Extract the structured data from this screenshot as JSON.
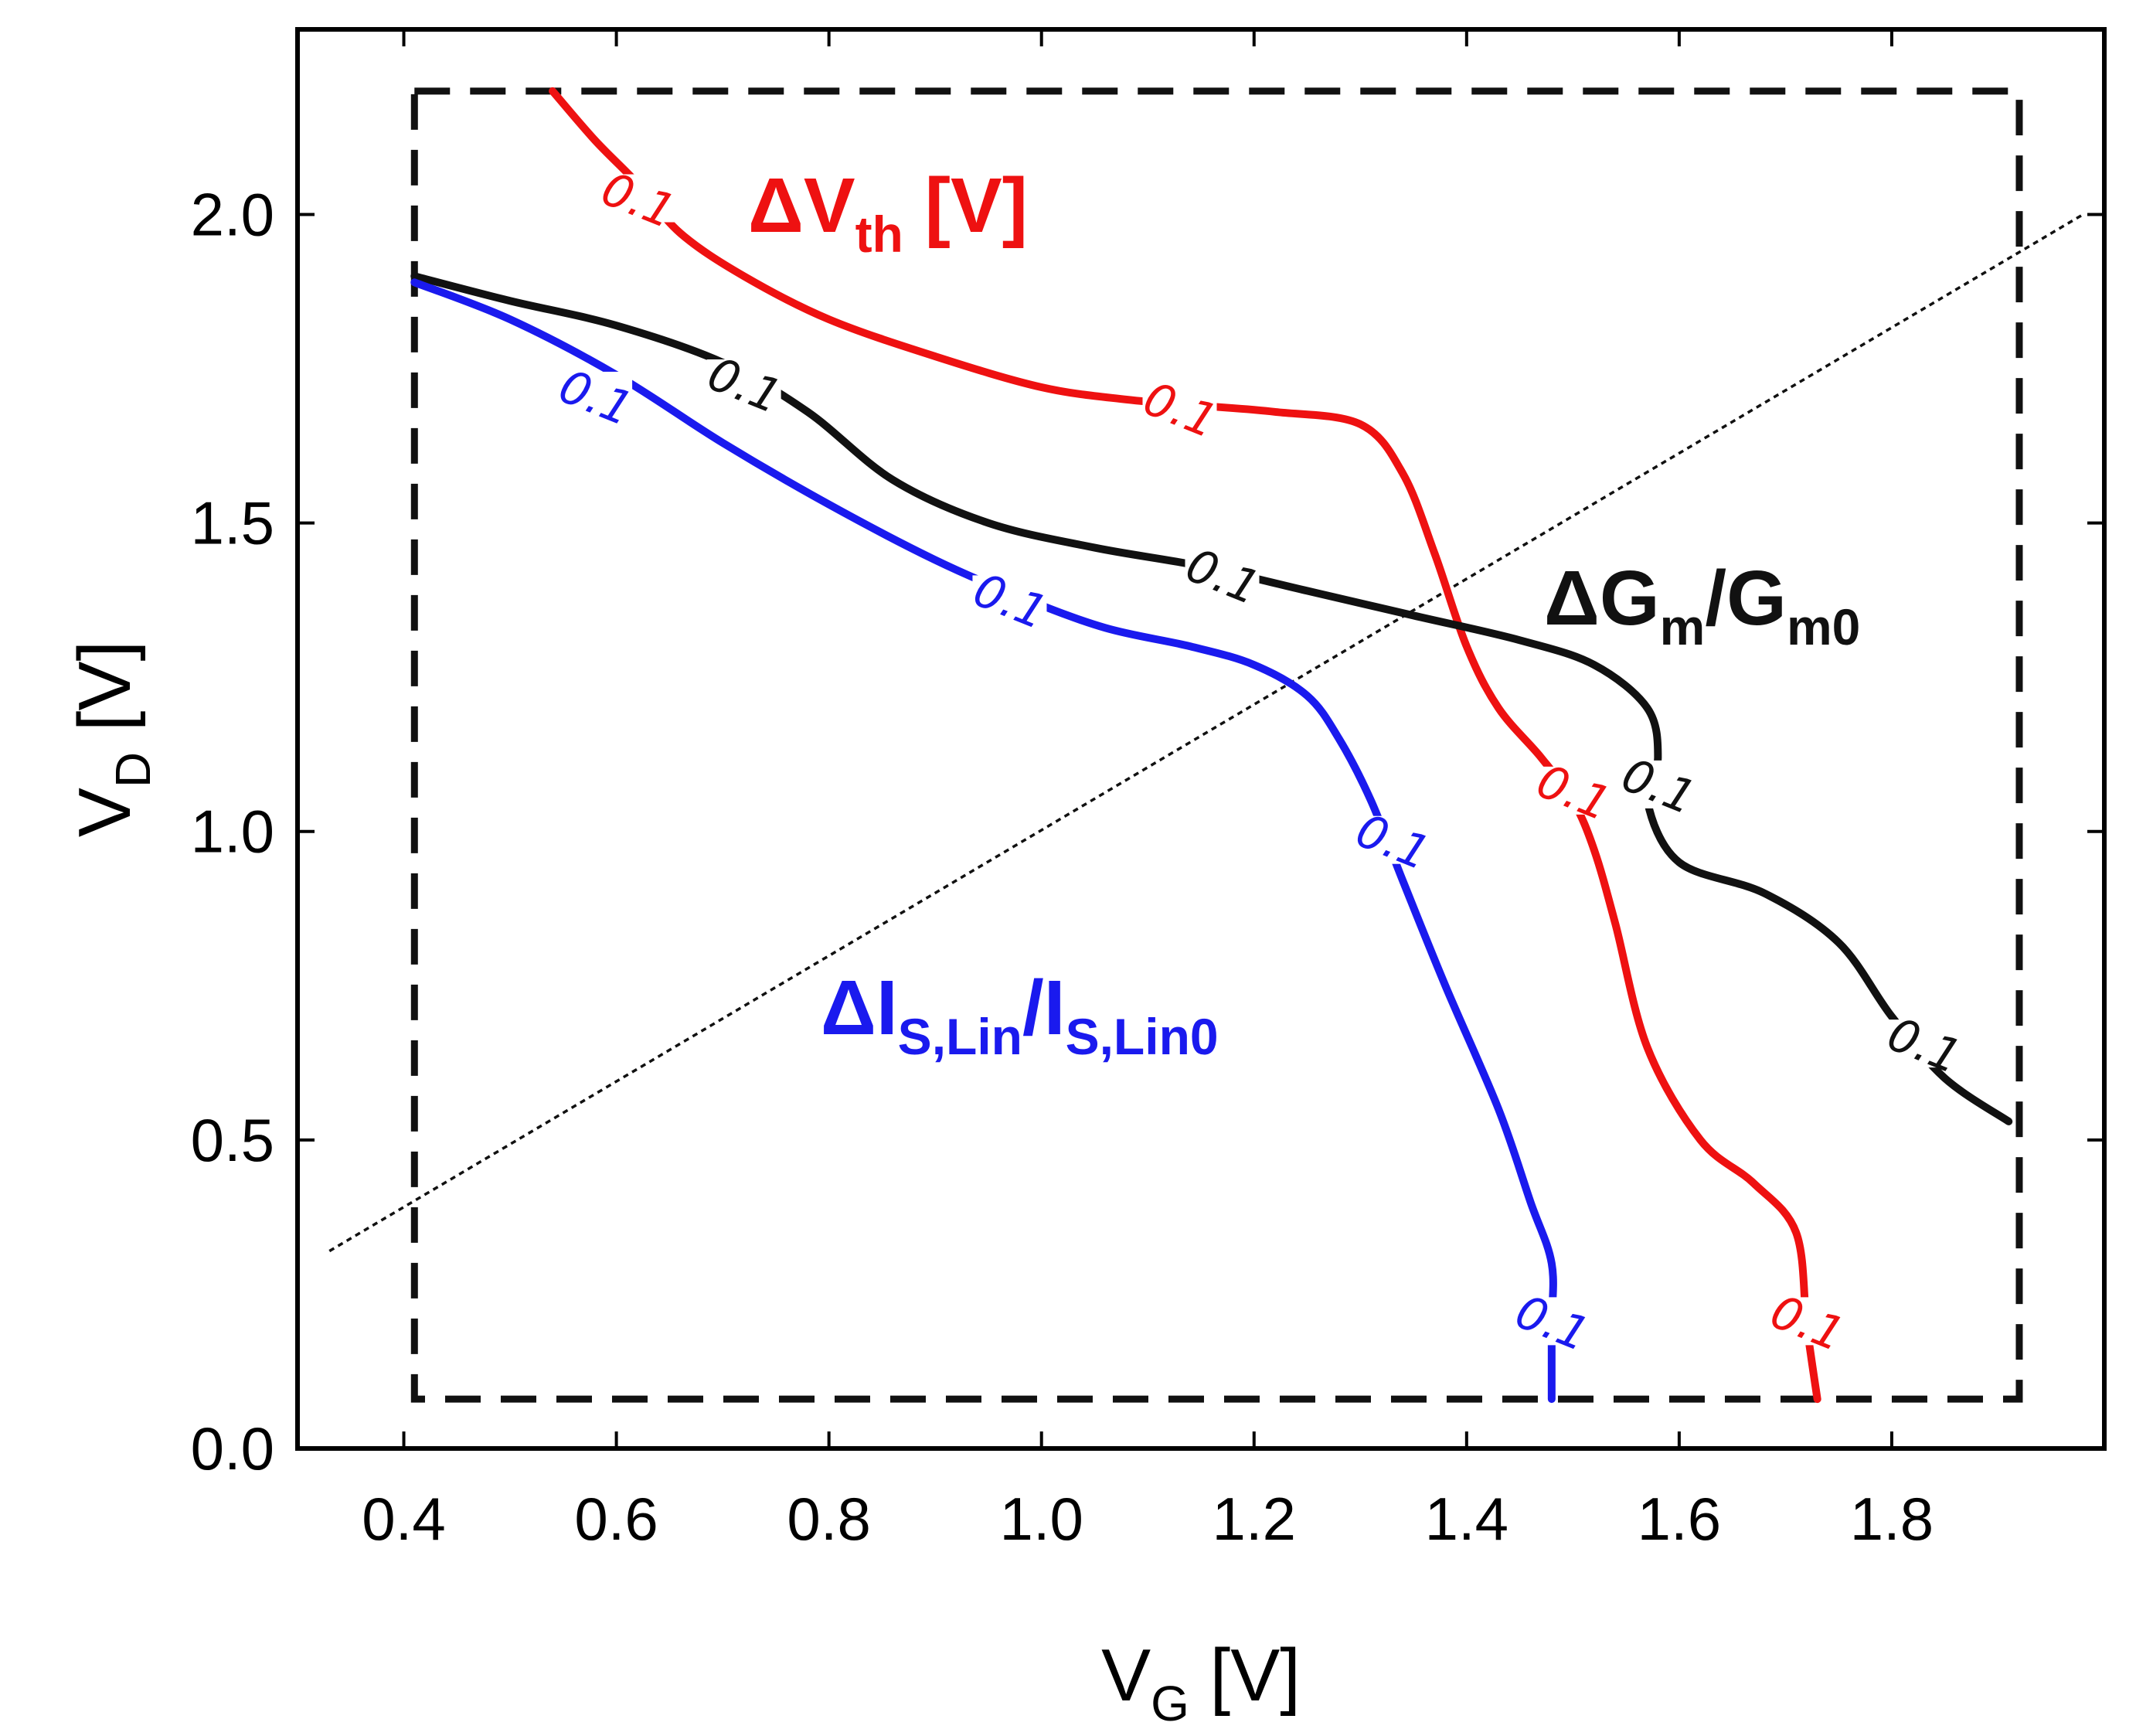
{
  "chart_data": {
    "type": "line",
    "title": "",
    "xlabel": {
      "main": "V",
      "sub": "G",
      "unit": " [V]"
    },
    "ylabel": {
      "main": "V",
      "sub": "D",
      "unit": " [V]"
    },
    "xlim": [
      0.3,
      2.0
    ],
    "ylim": [
      0.0,
      2.3
    ],
    "xticks": [
      0.4,
      0.6,
      0.8,
      1.0,
      1.2,
      1.4,
      1.6,
      1.8
    ],
    "xtick_labels": [
      "0.4",
      "0.6",
      "0.8",
      "1.0",
      "1.2",
      "1.4",
      "1.6",
      "1.8"
    ],
    "yticks": [
      0.0,
      0.5,
      1.0,
      1.5,
      2.0
    ],
    "ytick_labels": [
      "0.0",
      "0.5",
      "1.0",
      "1.5",
      "2.0"
    ],
    "grid": false,
    "region": {
      "x": [
        0.41,
        1.92
      ],
      "y": [
        0.08,
        2.2
      ],
      "style": "dashed"
    },
    "diagonal": {
      "x": [
        0.33,
        1.98
      ],
      "y": [
        0.32,
        2.0
      ],
      "style": "dotted"
    },
    "series": [
      {
        "name": "ΔVth",
        "label_main": "ΔV",
        "label_sub": "th",
        "label_suffix": " [V]",
        "color": "#ee1111",
        "contour_level": "0.1",
        "x": [
          0.54,
          0.58,
          0.62,
          0.66,
          0.72,
          0.8,
          0.9,
          1.0,
          1.08,
          1.15,
          1.22,
          1.3,
          1.34,
          1.37,
          1.4,
          1.43,
          1.47,
          1.5,
          1.52,
          1.54,
          1.57,
          1.62,
          1.67,
          1.71,
          1.72,
          1.73
        ],
        "y": [
          2.2,
          2.12,
          2.05,
          1.97,
          1.9,
          1.83,
          1.77,
          1.72,
          1.7,
          1.69,
          1.68,
          1.66,
          1.58,
          1.45,
          1.3,
          1.2,
          1.12,
          1.05,
          0.97,
          0.85,
          0.65,
          0.5,
          0.43,
          0.35,
          0.2,
          0.08
        ],
        "label_positions": [
          [
            0.62,
            2.02
          ],
          [
            1.13,
            1.68
          ],
          [
            1.5,
            1.06
          ],
          [
            1.72,
            0.2
          ]
        ]
      },
      {
        "name": "ΔGm/Gm0",
        "label_main": "ΔG",
        "label_sub": "m",
        "label_mid": "/G",
        "label_sub2": "m0",
        "color": "#111111",
        "contour_level": "0.1",
        "x": [
          0.41,
          0.5,
          0.6,
          0.7,
          0.78,
          0.86,
          0.95,
          1.05,
          1.15,
          1.25,
          1.35,
          1.45,
          1.52,
          1.57,
          1.58,
          1.57,
          1.6,
          1.68,
          1.75,
          1.8,
          1.85,
          1.91
        ],
        "y": [
          1.9,
          1.86,
          1.82,
          1.76,
          1.68,
          1.57,
          1.5,
          1.46,
          1.43,
          1.39,
          1.35,
          1.31,
          1.27,
          1.2,
          1.12,
          1.05,
          0.95,
          0.9,
          0.82,
          0.7,
          0.6,
          0.53
        ],
        "label_positions": [
          [
            0.72,
            1.72
          ],
          [
            1.17,
            1.41
          ],
          [
            1.58,
            1.07
          ],
          [
            1.83,
            0.65
          ]
        ]
      },
      {
        "name": "ΔIS,Lin/IS,Lin0",
        "label_main": "ΔI",
        "label_sub": "S,Lin",
        "label_mid": "/I",
        "label_sub2": "S,Lin0",
        "color": "#1a1aee",
        "contour_level": "0.1",
        "x": [
          0.41,
          0.5,
          0.6,
          0.7,
          0.8,
          0.9,
          0.98,
          1.06,
          1.14,
          1.2,
          1.25,
          1.28,
          1.31,
          1.34,
          1.38,
          1.43,
          1.46,
          1.48,
          1.48,
          1.48
        ],
        "y": [
          1.89,
          1.83,
          1.74,
          1.63,
          1.53,
          1.44,
          1.38,
          1.33,
          1.3,
          1.27,
          1.22,
          1.15,
          1.05,
          0.92,
          0.75,
          0.55,
          0.4,
          0.3,
          0.2,
          0.08
        ],
        "label_positions": [
          [
            0.58,
            1.7
          ],
          [
            0.97,
            1.37
          ],
          [
            1.33,
            0.98
          ],
          [
            1.48,
            0.2
          ]
        ]
      }
    ]
  }
}
